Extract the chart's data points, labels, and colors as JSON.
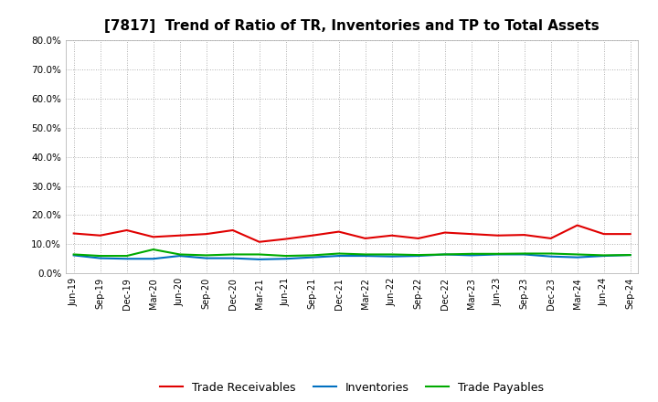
{
  "title": "[7817]  Trend of Ratio of TR, Inventories and TP to Total Assets",
  "ylim": [
    0.0,
    0.8
  ],
  "yticks": [
    0.0,
    0.1,
    0.2,
    0.3,
    0.4,
    0.5,
    0.6,
    0.7,
    0.8
  ],
  "labels": [
    "Jun-19",
    "Sep-19",
    "Dec-19",
    "Mar-20",
    "Jun-20",
    "Sep-20",
    "Dec-20",
    "Mar-21",
    "Jun-21",
    "Sep-21",
    "Dec-21",
    "Mar-22",
    "Jun-22",
    "Sep-22",
    "Dec-22",
    "Mar-23",
    "Jun-23",
    "Sep-23",
    "Dec-23",
    "Mar-24",
    "Jun-24",
    "Sep-24"
  ],
  "trade_receivables": [
    0.137,
    0.13,
    0.148,
    0.125,
    0.13,
    0.135,
    0.148,
    0.108,
    0.118,
    0.13,
    0.143,
    0.12,
    0.13,
    0.12,
    0.14,
    0.135,
    0.13,
    0.132,
    0.12,
    0.165,
    0.135,
    0.135
  ],
  "inventories": [
    0.062,
    0.052,
    0.05,
    0.05,
    0.06,
    0.052,
    0.052,
    0.048,
    0.05,
    0.055,
    0.06,
    0.06,
    0.058,
    0.06,
    0.065,
    0.062,
    0.065,
    0.065,
    0.058,
    0.055,
    0.06,
    0.063
  ],
  "trade_payables": [
    0.065,
    0.06,
    0.06,
    0.082,
    0.065,
    0.062,
    0.065,
    0.065,
    0.06,
    0.062,
    0.068,
    0.065,
    0.065,
    0.063,
    0.065,
    0.067,
    0.067,
    0.068,
    0.068,
    0.065,
    0.062,
    0.063
  ],
  "tr_color": "#e00000",
  "inv_color": "#0070c0",
  "tp_color": "#00aa00",
  "background_color": "#ffffff",
  "plot_bg_color": "#ffffff",
  "grid_color": "#999999",
  "title_fontsize": 11,
  "tick_fontsize": 7,
  "legend_labels": [
    "Trade Receivables",
    "Inventories",
    "Trade Payables"
  ]
}
